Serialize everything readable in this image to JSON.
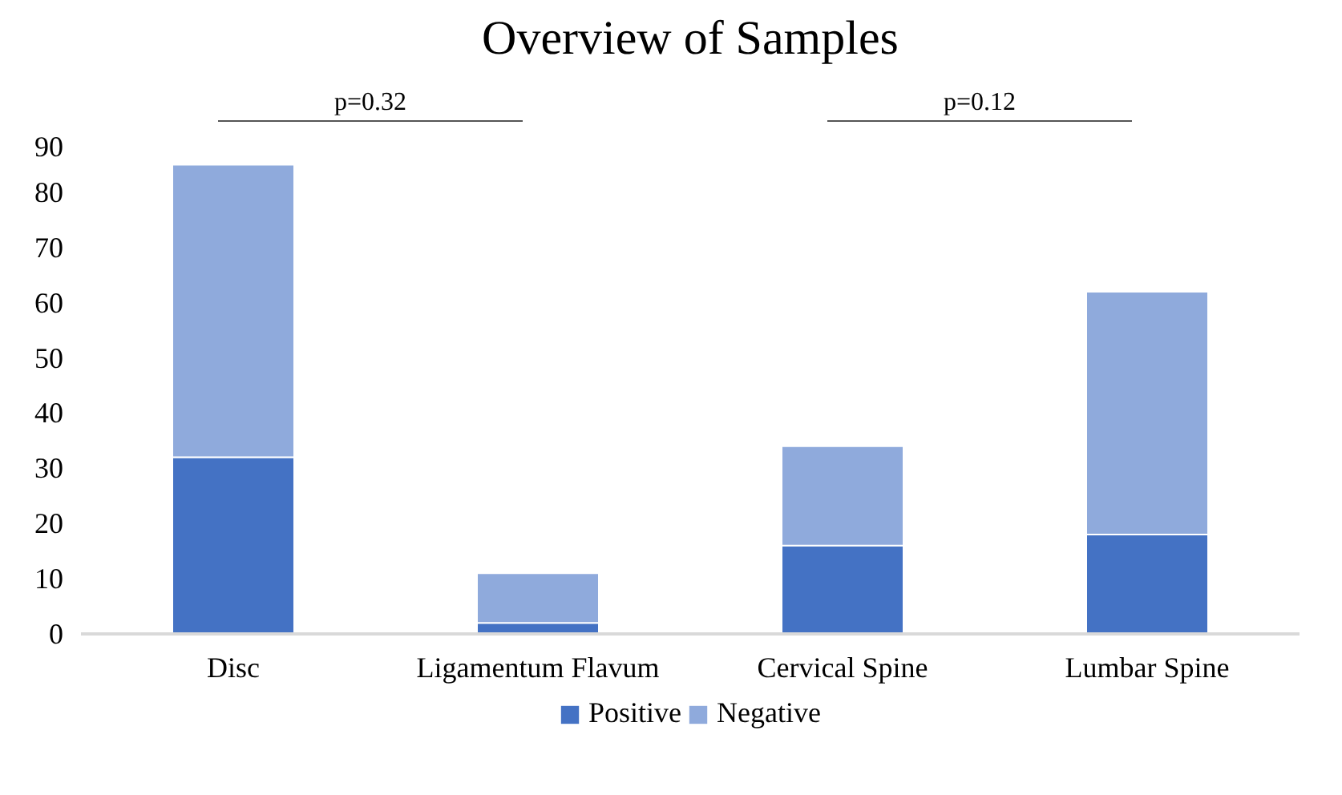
{
  "chart_data": {
    "type": "bar",
    "title": "Overview of Samples",
    "stacked": true,
    "categories": [
      "Disc",
      "Ligamentum Flavum",
      "Cervical Spine",
      "Lumbar Spine"
    ],
    "series": [
      {
        "name": "Positive",
        "color": "#4472c4",
        "values": [
          32,
          2,
          16,
          18
        ]
      },
      {
        "name": "Negative",
        "color": "#8faadc",
        "values": [
          53,
          9,
          18,
          44
        ]
      }
    ],
    "ylim": [
      0,
      90
    ],
    "yticks": [
      0,
      10,
      20,
      30,
      40,
      50,
      60,
      70,
      80,
      90
    ],
    "annotations": [
      "p=0.32",
      "p=0.12"
    ],
    "grid": false,
    "legend": "bottom"
  }
}
